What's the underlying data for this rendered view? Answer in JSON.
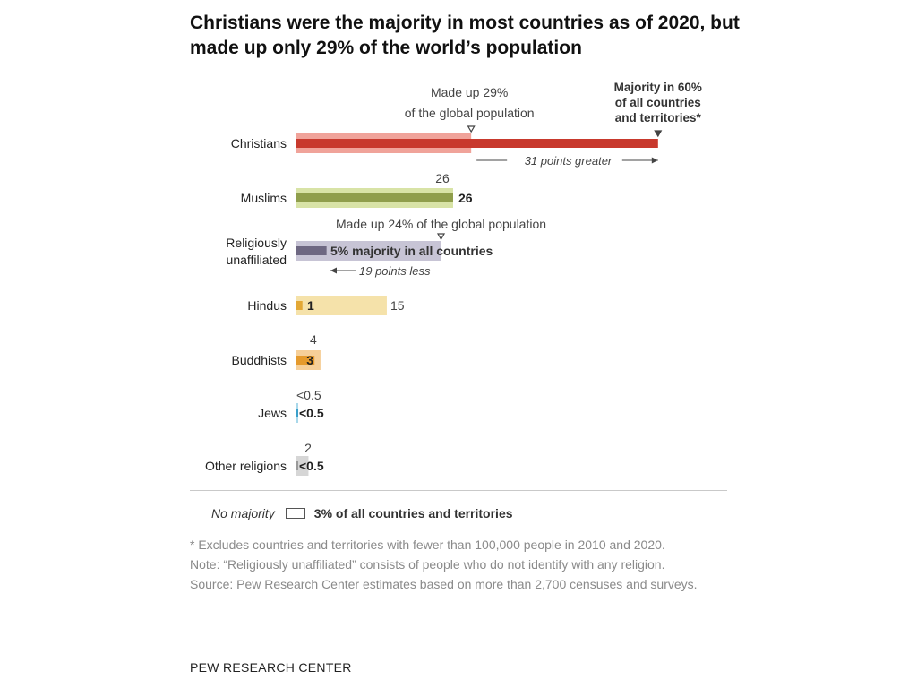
{
  "title": "Christians were the majority in most countries as of 2020, but made up only 29% of the world’s population",
  "chart_data": {
    "type": "bar",
    "categories": [
      "Christians",
      "Muslims",
      "Religiously unaffiliated",
      "Hindus",
      "Buddhists",
      "Jews",
      "Other religions"
    ],
    "series": [],
    "global_share_values": [
      29,
      26,
      24,
      15,
      4,
      0.3,
      2
    ],
    "majority_values": [
      60,
      26,
      5,
      1,
      3,
      0.3,
      0.3
    ],
    "global_share_labels": [
      "",
      "26",
      "",
      "15",
      "4",
      "<0.5",
      "2"
    ],
    "majority_labels": [
      "",
      "26",
      "",
      "1",
      "3",
      "<0.5",
      "<0.5"
    ],
    "colors": {
      "Christians": {
        "light": "#f0a39a",
        "dark": "#c8392d"
      },
      "Muslims": {
        "light": "#d8e3a6",
        "dark": "#8f9e4b"
      },
      "Religiously unaffiliated": {
        "light": "#c7c4d5",
        "dark": "#6e6882"
      },
      "Hindus": {
        "light": "#f5e2aa",
        "dark": "#e3a835"
      },
      "Buddhists": {
        "light": "#f6cf98",
        "dark": "#e59a2c"
      },
      "Jews": {
        "light": "#a9d8ea",
        "dark": "#3a9fca"
      },
      "Other religions": {
        "light": "#d6d6d6",
        "dark": "#9a9a9a"
      }
    },
    "annotations": {
      "christians_global": "Made up 29% of the global population",
      "christians_majority": "Majority in 60% of all countries and territories*",
      "christians_diff": "31 points greater",
      "unaffiliated_global": "Made up 24% of the global population",
      "unaffiliated_majority": "5% majority in all countries",
      "unaffiliated_diff": "19 points less"
    },
    "xlim": [
      0,
      60
    ]
  },
  "legend": {
    "no_majority_label": "No majority",
    "no_majority_value": "3% of all countries and territories"
  },
  "notes": {
    "footnote": "* Excludes countries and territories with fewer than 100,000 people in 2010 and 2020.",
    "note": "Note: “Religiously unaffiliated” consists of people who do not identify with any religion.",
    "source": "Source: Pew Research Center estimates based on more than 2,700 censuses and surveys."
  },
  "brand": "PEW RESEARCH CENTER"
}
